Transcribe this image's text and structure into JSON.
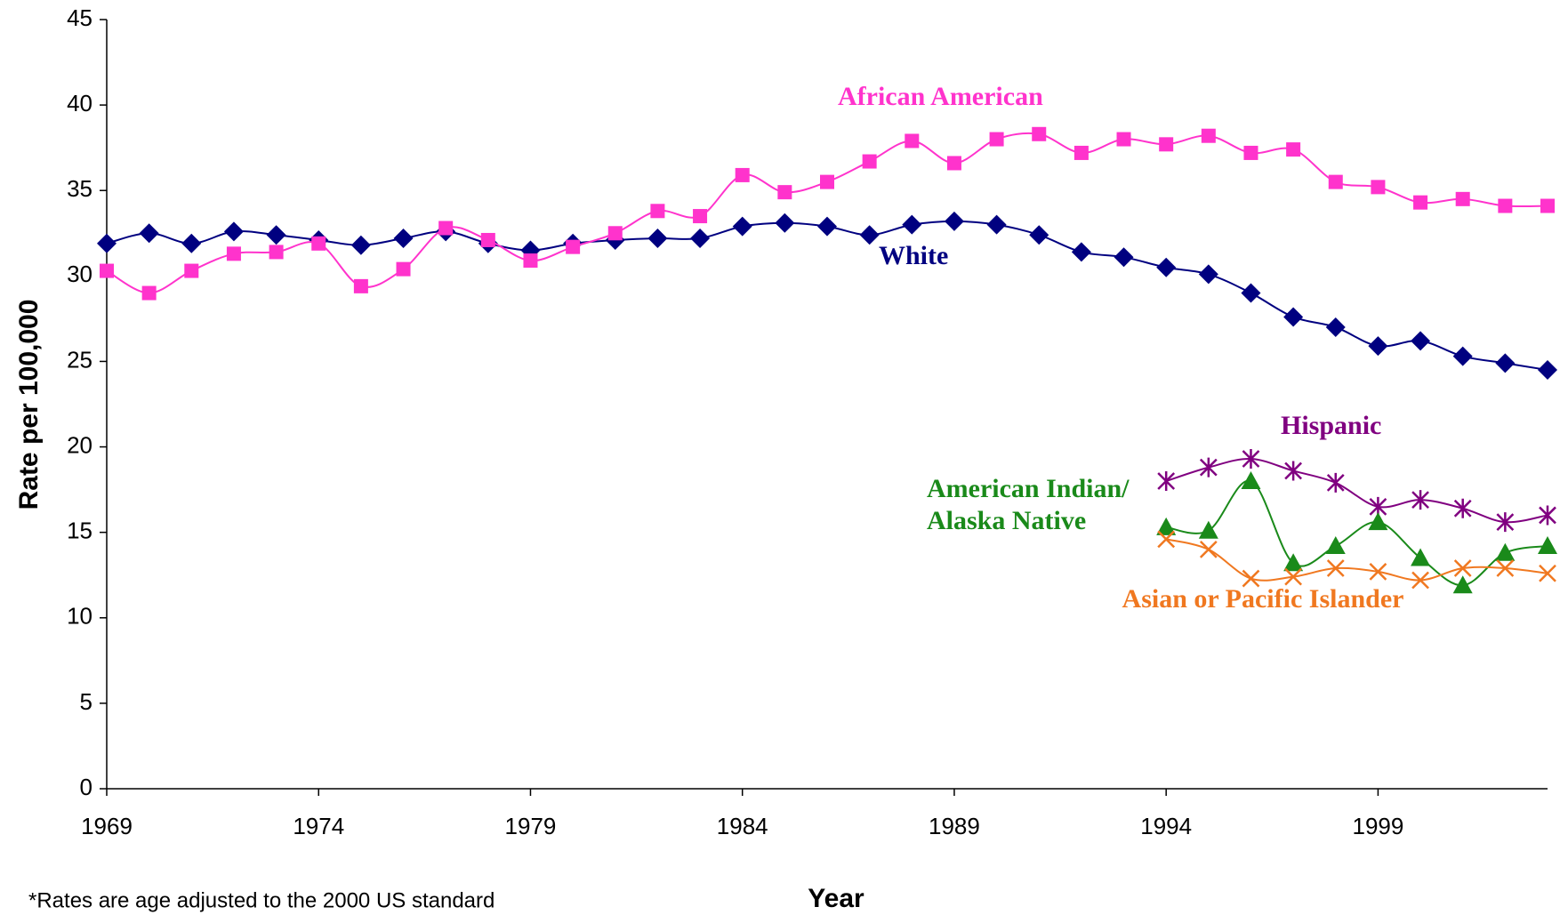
{
  "chart_data": {
    "type": "line",
    "x_label": "Year",
    "y_label": "Rate per 100,000",
    "footnote": "*Rates are age adjusted to the 2000 US standard",
    "x": [
      1969,
      1970,
      1971,
      1972,
      1973,
      1974,
      1975,
      1976,
      1977,
      1978,
      1979,
      1980,
      1981,
      1982,
      1983,
      1984,
      1985,
      1986,
      1987,
      1988,
      1989,
      1990,
      1991,
      1992,
      1993,
      1994,
      1995,
      1996,
      1997,
      1998,
      1999,
      2000,
      2001,
      2002,
      2003
    ],
    "xlim": [
      1969,
      2003
    ],
    "xticks": [
      1969,
      1974,
      1979,
      1984,
      1989,
      1994,
      1999
    ],
    "ylim": [
      0,
      45
    ],
    "yticks": [
      0,
      5,
      10,
      15,
      20,
      25,
      30,
      35,
      40,
      45
    ],
    "series": [
      {
        "name": "White",
        "color": "#000080",
        "marker": "diamond",
        "values": [
          31.9,
          32.5,
          31.9,
          32.6,
          32.4,
          32.1,
          31.8,
          32.2,
          32.6,
          31.9,
          31.5,
          31.9,
          32.1,
          32.2,
          32.2,
          32.9,
          33.1,
          32.9,
          32.4,
          33.0,
          33.2,
          33.0,
          32.4,
          31.4,
          31.1,
          30.5,
          30.1,
          29.0,
          27.6,
          27.0,
          25.9,
          26.2,
          25.3,
          24.9,
          24.5
        ]
      },
      {
        "name": "African American",
        "color": "#FF33CC",
        "marker": "square",
        "values": [
          30.3,
          29.0,
          30.3,
          31.3,
          31.4,
          31.9,
          29.4,
          30.4,
          32.8,
          32.1,
          30.9,
          31.7,
          32.5,
          33.8,
          33.5,
          35.9,
          34.9,
          35.5,
          36.7,
          37.9,
          36.6,
          38.0,
          38.3,
          37.2,
          38.0,
          37.7,
          38.2,
          37.2,
          37.4,
          35.5,
          35.2,
          34.3,
          34.5,
          34.1,
          34.1
        ]
      },
      {
        "name": "Hispanic",
        "color": "#800080",
        "marker": "star",
        "values": [
          null,
          null,
          null,
          null,
          null,
          null,
          null,
          null,
          null,
          null,
          null,
          null,
          null,
          null,
          null,
          null,
          null,
          null,
          null,
          null,
          null,
          null,
          null,
          null,
          null,
          18.0,
          18.8,
          19.3,
          18.6,
          17.9,
          16.5,
          16.9,
          16.4,
          15.6,
          16.0
        ]
      },
      {
        "name": "American Indian/ Alaska Native",
        "color": "#1A8A1A",
        "marker": "triangle",
        "values": [
          null,
          null,
          null,
          null,
          null,
          null,
          null,
          null,
          null,
          null,
          null,
          null,
          null,
          null,
          null,
          null,
          null,
          null,
          null,
          null,
          null,
          null,
          null,
          null,
          null,
          15.3,
          15.1,
          18.0,
          13.2,
          14.2,
          15.6,
          13.5,
          11.9,
          13.8,
          14.2
        ]
      },
      {
        "name": "Asian or Pacific Islander",
        "color": "#F07820",
        "marker": "cross",
        "values": [
          null,
          null,
          null,
          null,
          null,
          null,
          null,
          null,
          null,
          null,
          null,
          null,
          null,
          null,
          null,
          null,
          null,
          null,
          null,
          null,
          null,
          null,
          null,
          null,
          null,
          14.6,
          14.0,
          12.3,
          12.4,
          12.9,
          12.7,
          12.2,
          12.9,
          12.9,
          12.6
        ]
      }
    ]
  }
}
